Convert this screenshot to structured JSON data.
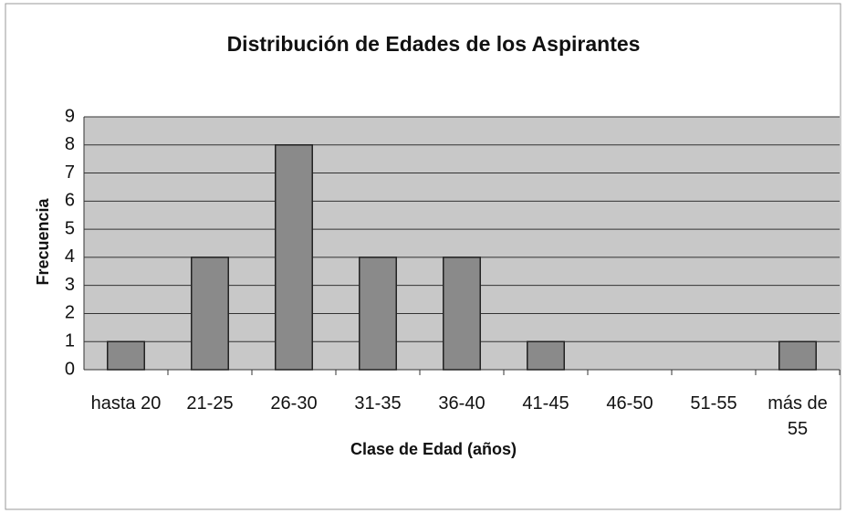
{
  "chart_data": {
    "type": "bar",
    "title": "Distribución de Edades de los Aspirantes",
    "x_label": "Clase de Edad (años)",
    "y_label": "Frecuencia",
    "categories": [
      "hasta 20",
      "21-25",
      "26-30",
      "31-35",
      "36-40",
      "41-45",
      "46-50",
      "51-55",
      "más de 55"
    ],
    "values": [
      1,
      4,
      8,
      4,
      4,
      1,
      0,
      0,
      1
    ],
    "color": "#8a8a8a",
    "ylim": [
      0,
      9
    ],
    "yticks": [
      0,
      1,
      2,
      3,
      4,
      5,
      6,
      7,
      8,
      9
    ],
    "grid": true
  }
}
